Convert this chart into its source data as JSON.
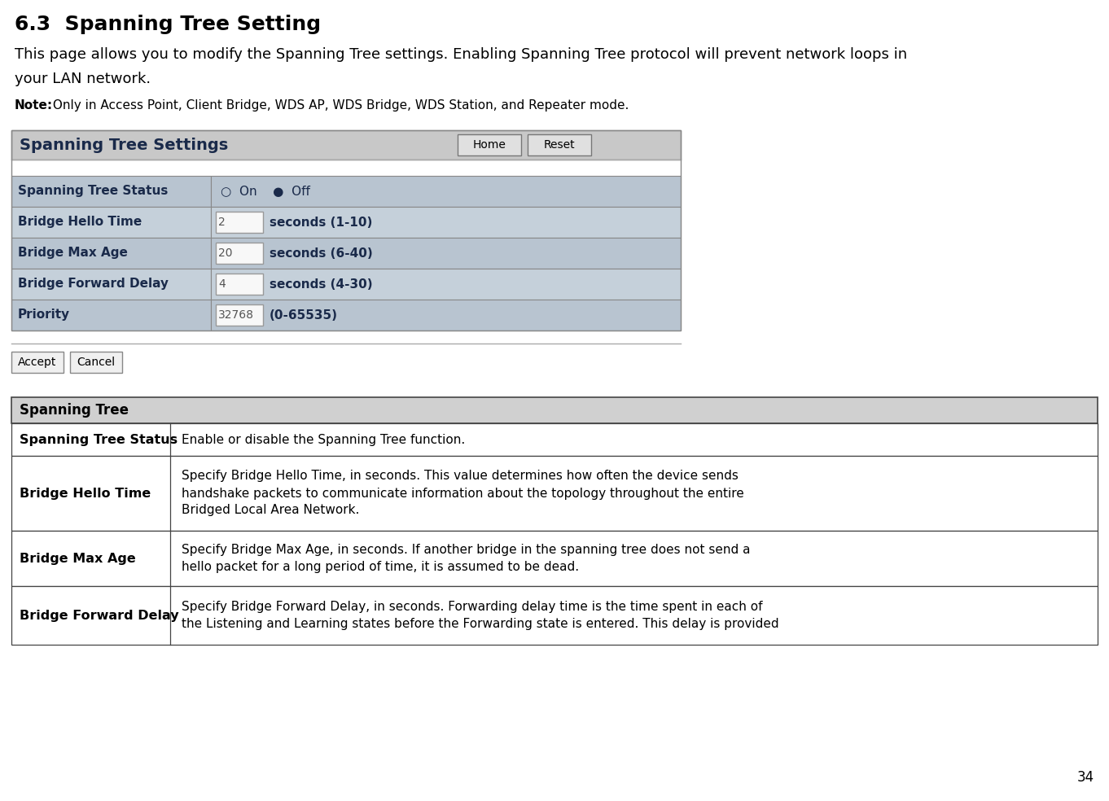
{
  "title": "6.3  Spanning Tree Setting",
  "intro_line1": "This page allows you to modify the Spanning Tree settings. Enabling Spanning Tree protocol will prevent network loops in",
  "intro_line2": "your LAN network.",
  "note_bold": "Note:",
  "note_text": " Only in Access Point, Client Bridge, WDS AP, WDS Bridge, WDS Station, and Repeater mode.",
  "settings_title": "Spanning Tree Settings",
  "button1": "Home",
  "button2": "Reset",
  "table_rows": [
    {
      "label": "Spanning Tree Status",
      "value": "○  On    ●  Off",
      "type": "radio"
    },
    {
      "label": "Bridge Hello Time",
      "value": "2",
      "suffix": "seconds (1-10)",
      "type": "input"
    },
    {
      "label": "Bridge Max Age",
      "value": "20",
      "suffix": "seconds (6-40)",
      "type": "input"
    },
    {
      "label": "Bridge Forward Delay",
      "value": "4",
      "suffix": "seconds (4-30)",
      "type": "input"
    },
    {
      "label": "Priority",
      "value": "32768",
      "suffix": "(0-65535)",
      "type": "input"
    }
  ],
  "accept_btn": "Accept",
  "cancel_btn": "Cancel",
  "ref_table_header": "Spanning Tree",
  "ref_table_rows": [
    {
      "term": "Spanning Tree Status",
      "desc": "Enable or disable the Spanning Tree function."
    },
    {
      "term": "Bridge Hello Time",
      "desc": "Specify Bridge Hello Time, in seconds. This value determines how often the device sends\nhandshake packets to communicate information about the topology throughout the entire\nBridged Local Area Network."
    },
    {
      "term": "Bridge Max Age",
      "desc": "Specify Bridge Max Age, in seconds. If another bridge in the spanning tree does not send a\nhello packet for a long period of time, it is assumed to be dead."
    },
    {
      "term": "Bridge Forward Delay",
      "desc": "Specify Bridge Forward Delay, in seconds. Forwarding delay time is the time spent in each of\nthe Listening and Learning states before the Forwarding state is entered. This delay is provided"
    }
  ],
  "page_number": "34",
  "bg_color": "#ffffff",
  "settings_header_bg": "#c8c8c8",
  "row_bg_1": "#b8c4d0",
  "row_bg_2": "#c5d0da",
  "ref_header_bg": "#d0d0d0",
  "label_color": "#1a2a4a",
  "text_color": "#000000",
  "border_color": "#888888",
  "dark_border": "#444444"
}
